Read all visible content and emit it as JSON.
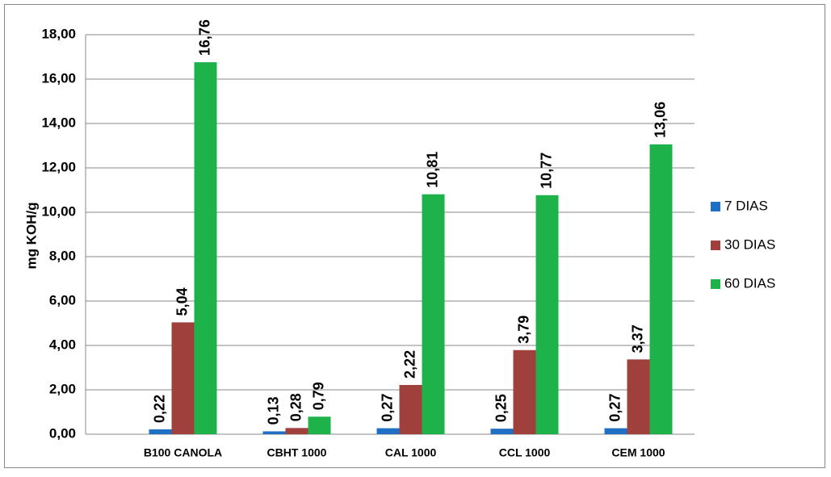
{
  "chart_data": {
    "type": "bar",
    "y_label": "mg KOH/g",
    "categories": [
      "B100 CANOLA",
      "CBHT 1000",
      "CAL 1000",
      "CCL 1000",
      "CEM 1000"
    ],
    "series": [
      {
        "name": "7 DIAS",
        "color": "#1f6fc5",
        "values": [
          0.22,
          0.13,
          0.27,
          0.25,
          0.27
        ],
        "value_labels": [
          "0,22",
          "0,13",
          "0,27",
          "0,25",
          "0,27"
        ]
      },
      {
        "name": "30 DIAS",
        "color": "#a0403d",
        "values": [
          5.04,
          0.28,
          2.22,
          3.79,
          3.37
        ],
        "value_labels": [
          "5,04",
          "0,28",
          "2,22",
          "3,79",
          "3,37"
        ]
      },
      {
        "name": "60 DIAS",
        "color": "#1db34a",
        "values": [
          16.76,
          0.79,
          10.81,
          10.77,
          13.06
        ],
        "value_labels": [
          "16,76",
          "0,79",
          "10,81",
          "10,77",
          "13,06"
        ]
      }
    ],
    "ylim": [
      0,
      18
    ],
    "yticks": [
      {
        "value": 0,
        "label": "0,00"
      },
      {
        "value": 2,
        "label": "2,00"
      },
      {
        "value": 4,
        "label": "4,00"
      },
      {
        "value": 6,
        "label": "6,00"
      },
      {
        "value": 8,
        "label": "8,00"
      },
      {
        "value": 10,
        "label": "10,00"
      },
      {
        "value": 12,
        "label": "12,00"
      },
      {
        "value": 14,
        "label": "14,00"
      },
      {
        "value": 16,
        "label": "16,00"
      },
      {
        "value": 18,
        "label": "18,00"
      }
    ],
    "grid": true,
    "legend": "right"
  }
}
